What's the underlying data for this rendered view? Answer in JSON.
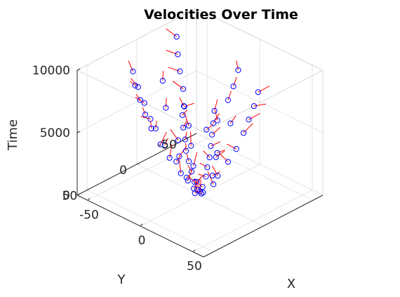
{
  "chart_data": {
    "type": "scatter3d-quiver",
    "title": "Velocities Over Time",
    "xlabel": "X",
    "ylabel": "Y",
    "zlabel": "Time",
    "xlim": [
      -60,
      60
    ],
    "ylim": [
      -60,
      60
    ],
    "zlim": [
      0,
      10000
    ],
    "x_ticks": [
      "-50",
      "0",
      "50"
    ],
    "y_ticks": [
      "-50",
      "0",
      "50"
    ],
    "z_ticks": [
      "0",
      "5000",
      "10000"
    ],
    "grid": true,
    "series": [
      {
        "kind": "position-markers",
        "marker": "circle",
        "points": [
          [
            -2,
            3,
            200
          ],
          [
            2,
            -1,
            250
          ],
          [
            0,
            0,
            300
          ],
          [
            -4,
            2,
            450
          ],
          [
            5,
            4,
            500
          ],
          [
            -6,
            -3,
            700
          ],
          [
            3,
            6,
            800
          ],
          [
            8,
            -5,
            1000
          ],
          [
            -9,
            4,
            1200
          ],
          [
            10,
            8,
            1400
          ],
          [
            -12,
            -6,
            1600
          ],
          [
            6,
            12,
            1800
          ],
          [
            14,
            -3,
            2000
          ],
          [
            -4,
            15,
            2200
          ],
          [
            -15,
            8,
            2400
          ],
          [
            16,
            11,
            2600
          ],
          [
            -18,
            -10,
            2800
          ],
          [
            9,
            18,
            3000
          ],
          [
            20,
            -7,
            3200
          ],
          [
            -10,
            20,
            3400
          ],
          [
            -22,
            12,
            3600
          ],
          [
            22,
            16,
            3800
          ],
          [
            -24,
            -14,
            4000
          ],
          [
            12,
            24,
            4200
          ],
          [
            26,
            -9,
            4400
          ],
          [
            -13,
            26,
            4600
          ],
          [
            -28,
            15,
            4800
          ],
          [
            28,
            20,
            5000
          ],
          [
            -30,
            -16,
            5200
          ],
          [
            15,
            30,
            5400
          ],
          [
            -30,
            18,
            5600
          ],
          [
            31,
            -11,
            5800
          ],
          [
            -16,
            32,
            6000
          ],
          [
            32,
            23,
            6200
          ],
          [
            -33,
            -18,
            6400
          ],
          [
            18,
            34,
            6600
          ],
          [
            -34,
            20,
            6800
          ],
          [
            35,
            -12,
            7000
          ],
          [
            -18,
            36,
            7200
          ],
          [
            36,
            26,
            7400
          ],
          [
            -37,
            -19,
            7600
          ],
          [
            20,
            38,
            7800
          ],
          [
            -38,
            22,
            8000
          ],
          [
            39,
            -13,
            8200
          ],
          [
            -20,
            39,
            8400
          ],
          [
            40,
            29,
            8600
          ],
          [
            -40,
            -20,
            8800
          ],
          [
            22,
            41,
            9000
          ],
          [
            -41,
            24,
            9200
          ],
          [
            42,
            -14,
            9400
          ],
          [
            -22,
            42,
            9600
          ],
          [
            43,
            31,
            9800
          ],
          [
            -43,
            -22,
            10000
          ],
          [
            5,
            -12,
            3100
          ],
          [
            -8,
            -15,
            4300
          ],
          [
            12,
            -18,
            5500
          ],
          [
            -15,
            5,
            2700
          ],
          [
            18,
            3,
            3900
          ],
          [
            -20,
            -5,
            6100
          ],
          [
            24,
            8,
            7300
          ],
          [
            -26,
            10,
            8500
          ],
          [
            28,
            -4,
            9700
          ],
          [
            0,
            22,
            5300
          ],
          [
            3,
            -25,
            6700
          ],
          [
            -6,
            28,
            7900
          ],
          [
            8,
            -30,
            9100
          ],
          [
            -2,
            10,
            1500
          ],
          [
            10,
            -2,
            1900
          ]
        ]
      },
      {
        "kind": "velocity-arrows",
        "marker": "arrow",
        "note": "velocity vectors drawn at each position"
      }
    ]
  },
  "colors": {
    "markers": "#0000ff",
    "arrows": "#ff0000",
    "axes": "#262626",
    "grid": "#e6e6e6",
    "background": "#ffffff"
  }
}
